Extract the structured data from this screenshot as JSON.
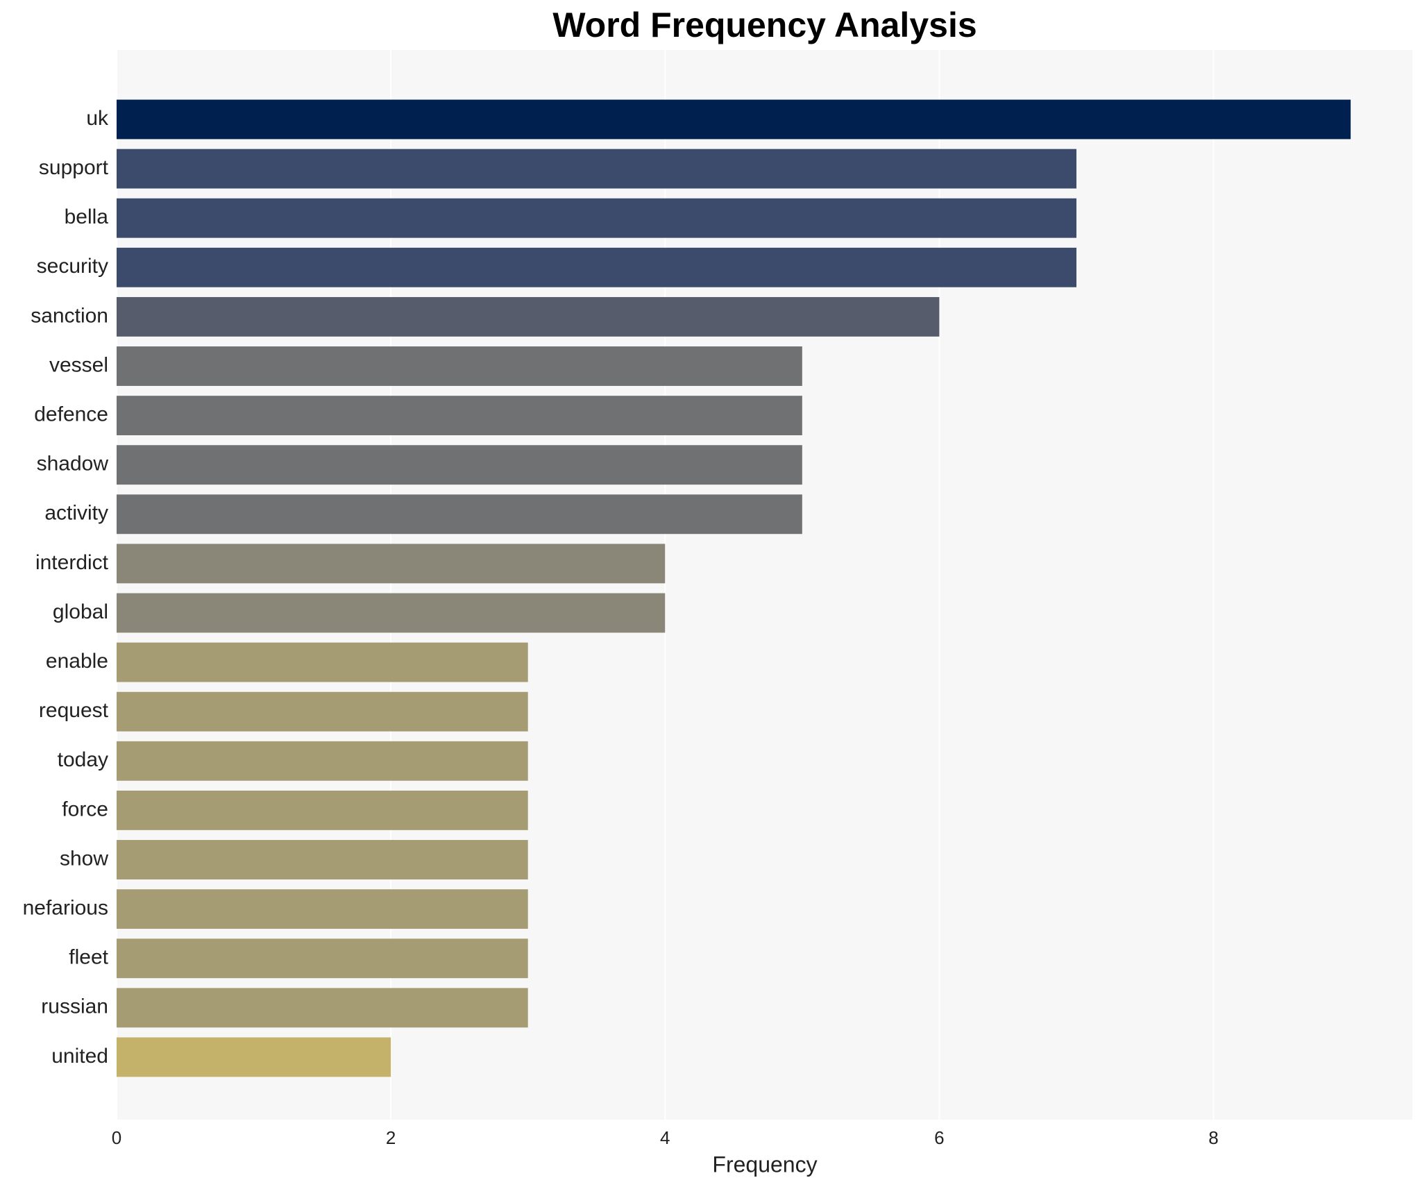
{
  "chart_data": {
    "type": "bar",
    "orientation": "horizontal",
    "title": "Word Frequency Analysis",
    "x_label": "Frequency",
    "categories": [
      "uk",
      "support",
      "bella",
      "security",
      "sanction",
      "vessel",
      "defence",
      "shadow",
      "activity",
      "interdict",
      "global",
      "enable",
      "request",
      "today",
      "force",
      "show",
      "nefarious",
      "fleet",
      "russian",
      "united"
    ],
    "values": [
      9,
      7,
      7,
      7,
      6,
      5,
      5,
      5,
      5,
      4,
      4,
      3,
      3,
      3,
      3,
      3,
      3,
      3,
      3,
      2
    ],
    "colors": [
      "#00204f",
      "#3c4a6b",
      "#3c4a6b",
      "#3c4a6b",
      "#575c6d",
      "#707173",
      "#707173",
      "#707173",
      "#707173",
      "#8a8778",
      "#8a8778",
      "#a59c74",
      "#a59c74",
      "#a59c74",
      "#a59c74",
      "#a59c74",
      "#a59c74",
      "#a59c74",
      "#a59c74",
      "#c4b16a"
    ],
    "xlim": [
      0,
      9.45
    ],
    "xticks": [
      0,
      2,
      4,
      6,
      8
    ],
    "grid": true
  }
}
